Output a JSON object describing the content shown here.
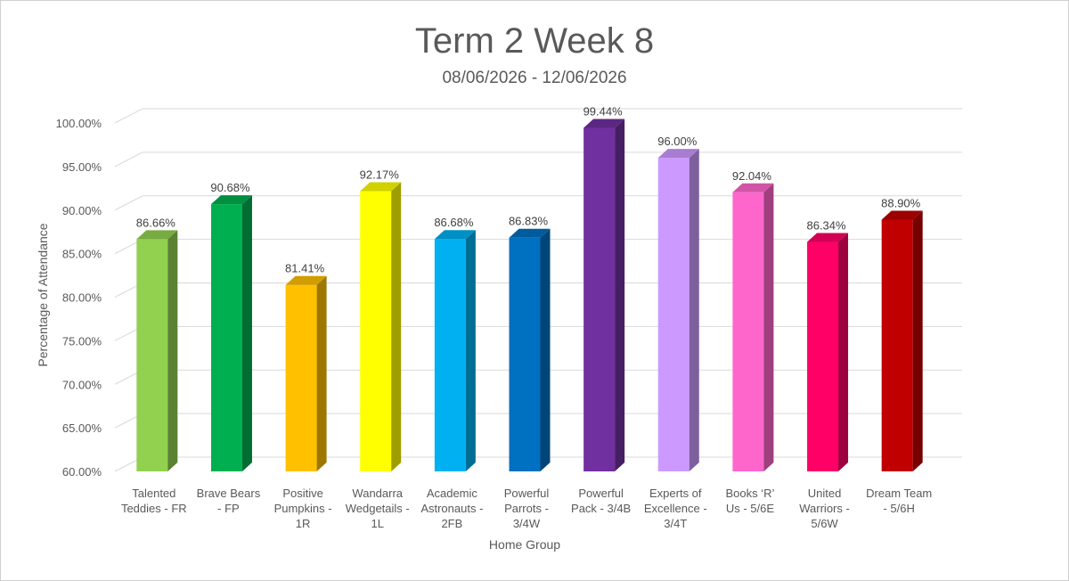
{
  "chart_data": {
    "type": "bar",
    "style": "3d-column",
    "title": "Term 2 Week 8",
    "subtitle": "08/06/2026 - 12/06/2026",
    "xlabel": "Home Group",
    "ylabel": "Percentage of Attendance",
    "ylim": [
      60,
      100
    ],
    "y_ticks": [
      "60.00%",
      "65.00%",
      "70.00%",
      "75.00%",
      "80.00%",
      "85.00%",
      "90.00%",
      "95.00%",
      "100.00%"
    ],
    "grid": true,
    "legend": "none",
    "categories": [
      [
        "Talented",
        "Teddies - FR"
      ],
      [
        "Brave Bears",
        "- FP"
      ],
      [
        "Positive",
        "Pumpkins -",
        "1R"
      ],
      [
        "Wandarra",
        "Wedgetails -",
        "1L"
      ],
      [
        "Academic",
        "Astronauts -",
        "2FB"
      ],
      [
        "Powerful",
        "Parrots -",
        "3/4W"
      ],
      [
        "Powerful",
        "Pack - 3/4B"
      ],
      [
        "Experts of",
        "Excellence -",
        "3/4T"
      ],
      [
        "Books ‘R’",
        "Us - 5/6E"
      ],
      [
        "United",
        "Warriors -",
        "5/6W"
      ],
      [
        "Dream Team",
        "- 5/6H"
      ]
    ],
    "values": [
      86.66,
      90.68,
      81.41,
      92.17,
      86.68,
      86.83,
      99.44,
      96.0,
      92.04,
      86.34,
      88.9
    ],
    "data_labels": [
      "86.66%",
      "90.68%",
      "81.41%",
      "92.17%",
      "86.68%",
      "86.83%",
      "99.44%",
      "96.00%",
      "92.04%",
      "86.34%",
      "88.90%"
    ],
    "colors": [
      "#92d050",
      "#00b050",
      "#ffc000",
      "#ffff00",
      "#00b0f0",
      "#0070c0",
      "#7030a0",
      "#cc99ff",
      "#ff66cc",
      "#ff0066",
      "#c00000"
    ]
  }
}
